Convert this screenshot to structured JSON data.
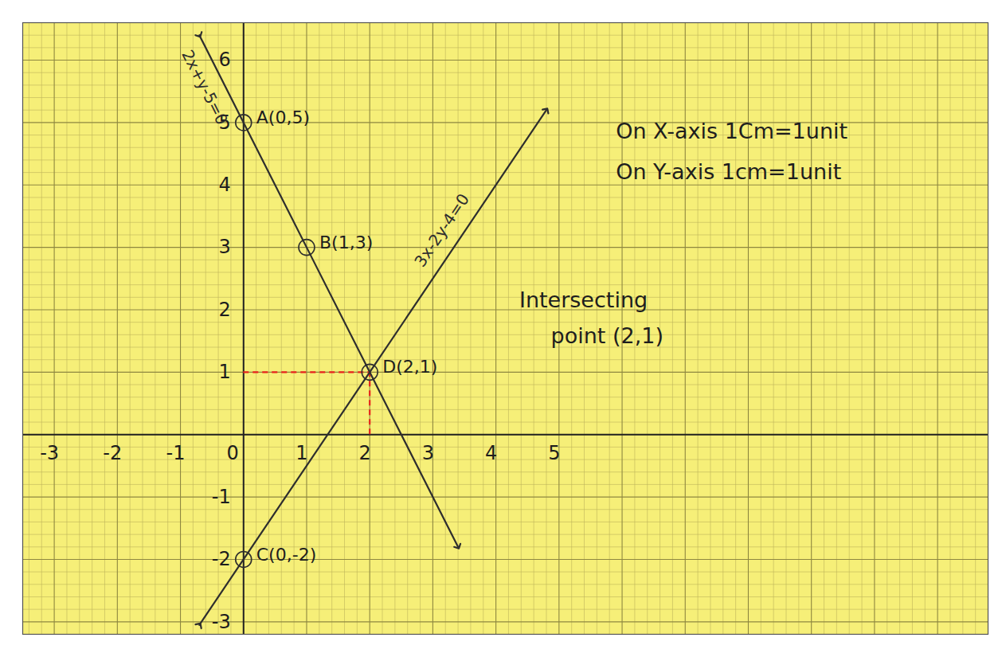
{
  "chart_data": {
    "type": "line",
    "xlim": [
      -3.5,
      11.8
    ],
    "ylim": [
      -3.2,
      6.6
    ],
    "xticks": [
      -3,
      -2,
      -1,
      0,
      1,
      2,
      3,
      4,
      5
    ],
    "yticks": [
      -3,
      -2,
      -1,
      1,
      2,
      3,
      4,
      5,
      6
    ],
    "grid": true,
    "series": [
      {
        "name": "2x+y-5=0",
        "color": "#2e2e2e",
        "marker": "arrow",
        "x": [
          -0.7,
          0,
          1,
          2,
          3.4
        ],
        "values": [
          6.4,
          5,
          3,
          1,
          -1.8
        ]
      },
      {
        "name": "3x-2y-4=0",
        "color": "#2e2e2e",
        "marker": "arrow",
        "x": [
          -0.7,
          0,
          2,
          4.8
        ],
        "values": [
          -3.05,
          -2,
          1,
          5.2
        ]
      }
    ],
    "points": [
      {
        "label": "A(0,5)",
        "x": 0,
        "y": 5
      },
      {
        "label": "B(1,3)",
        "x": 1,
        "y": 3
      },
      {
        "label": "C(0,-2)",
        "x": 0,
        "y": -2
      },
      {
        "label": "D(2,1)",
        "x": 2,
        "y": 1
      }
    ],
    "guides": [
      {
        "x": 2,
        "y": 1,
        "color": "#e8231c",
        "line_style": "dashed"
      }
    ],
    "annotations": [
      {
        "text": "On X-axis 1Cm=1unit",
        "x": 5.9,
        "y": 4.85
      },
      {
        "text": "On Y-axis 1cm=1unit",
        "x": 5.9,
        "y": 4.2
      },
      {
        "text": "Intersecting",
        "x": 4.37,
        "y": 2.15
      },
      {
        "text": "point (2,1)",
        "x": 4.87,
        "y": 1.58
      }
    ]
  }
}
